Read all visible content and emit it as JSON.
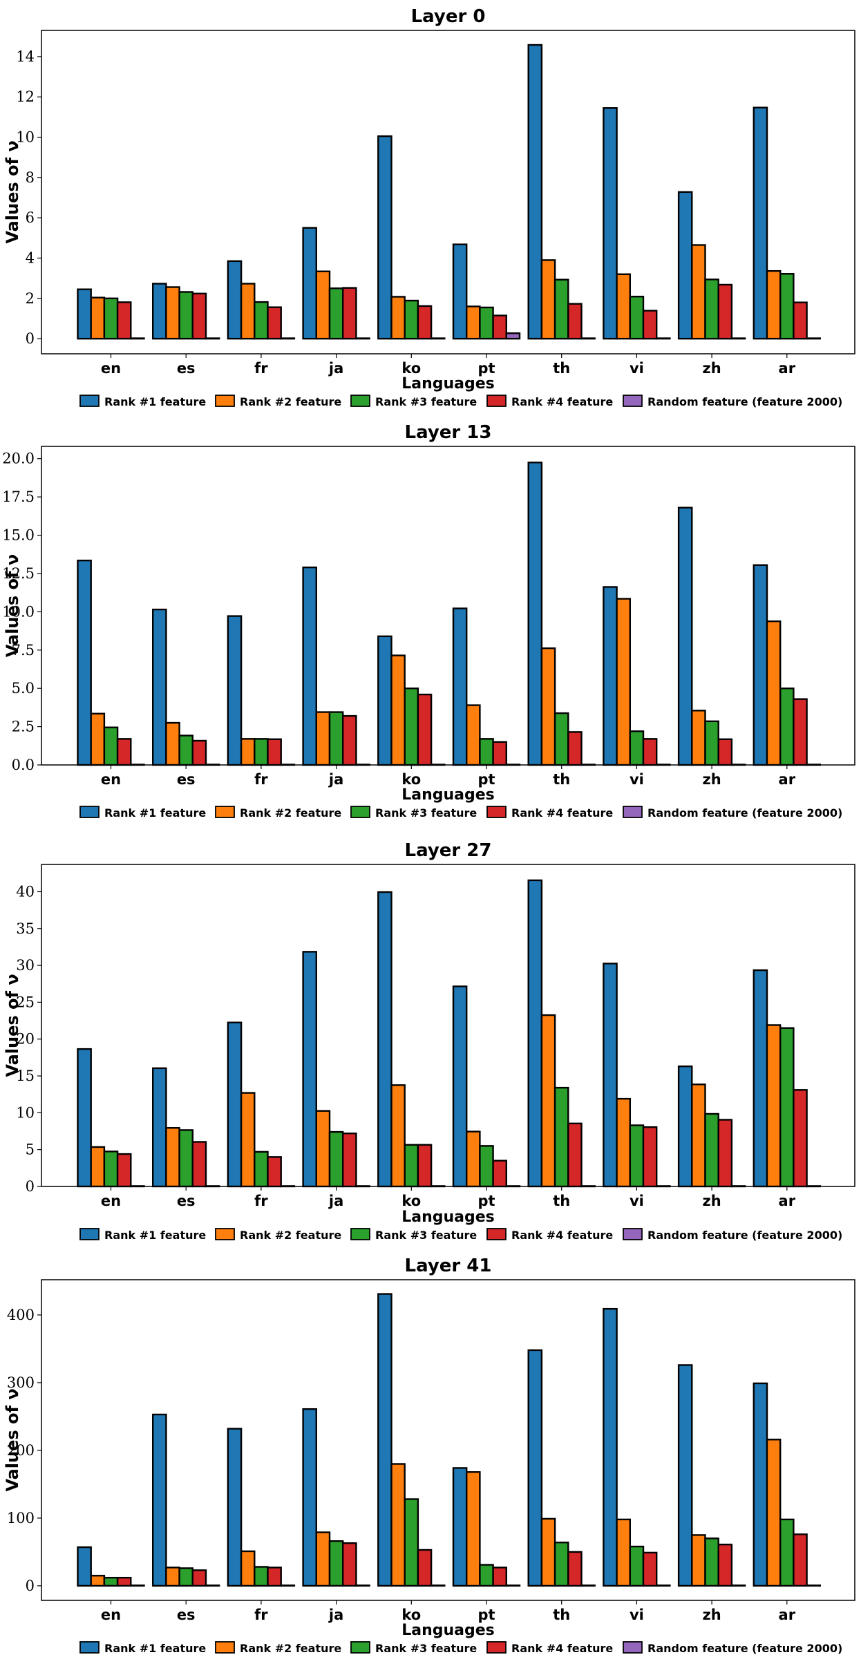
{
  "chart_data": [
    {
      "type": "bar",
      "title": "Layer 0",
      "xlabel": "Languages",
      "ylabel": "Values of ν",
      "categories": [
        "en",
        "es",
        "fr",
        "ja",
        "ko",
        "pt",
        "th",
        "vi",
        "zh",
        "ar"
      ],
      "ylim": [
        -0.75,
        15.3
      ],
      "yticks": [
        0,
        2,
        4,
        6,
        8,
        10,
        12,
        14
      ],
      "ytick_labels": [
        "0",
        "2",
        "4",
        "6",
        "8",
        "10",
        "12",
        "14"
      ],
      "legend_position": "bottom-center",
      "series": [
        {
          "name": "Rank #1 feature",
          "color": "#1f77b4",
          "values": [
            2.45,
            2.73,
            3.85,
            5.5,
            10.05,
            4.68,
            14.58,
            11.45,
            7.28,
            11.47
          ]
        },
        {
          "name": "Rank #2 feature",
          "color": "#ff7f0e",
          "values": [
            2.04,
            2.56,
            2.73,
            3.34,
            2.08,
            1.6,
            3.9,
            3.2,
            4.65,
            3.36
          ]
        },
        {
          "name": "Rank #3 feature",
          "color": "#2ca02c",
          "values": [
            2.0,
            2.32,
            1.82,
            2.5,
            1.89,
            1.55,
            2.93,
            2.09,
            2.94,
            3.22
          ]
        },
        {
          "name": "Rank #4 feature",
          "color": "#d62728",
          "values": [
            1.81,
            2.24,
            1.56,
            2.52,
            1.62,
            1.15,
            1.73,
            1.39,
            2.68,
            1.8
          ]
        },
        {
          "name": "Random feature (feature 2000)",
          "color": "#9467bd",
          "values": [
            0.02,
            0.02,
            0.02,
            0.02,
            0.02,
            0.27,
            0.02,
            0.02,
            0.02,
            0.02
          ]
        }
      ]
    },
    {
      "type": "bar",
      "title": "Layer 13",
      "xlabel": "Languages",
      "ylabel": "Values of ν",
      "categories": [
        "en",
        "es",
        "fr",
        "ja",
        "ko",
        "pt",
        "th",
        "vi",
        "zh",
        "ar"
      ],
      "ylim": [
        0,
        20.8
      ],
      "yticks": [
        0,
        2.5,
        5,
        7.5,
        10,
        12.5,
        15,
        17.5,
        20
      ],
      "ytick_labels": [
        "0.0",
        "2.5",
        "5.0",
        "7.5",
        "10.0",
        "12.5",
        "15.0",
        "17.5",
        "20.0"
      ],
      "legend_position": "bottom-center",
      "series": [
        {
          "name": "Rank #1 feature",
          "color": "#1f77b4",
          "values": [
            13.35,
            10.15,
            9.72,
            12.9,
            8.4,
            10.22,
            19.75,
            11.62,
            16.8,
            13.05
          ]
        },
        {
          "name": "Rank #2 feature",
          "color": "#ff7f0e",
          "values": [
            3.35,
            2.75,
            1.7,
            3.45,
            7.15,
            3.9,
            7.62,
            10.85,
            3.55,
            9.38
          ]
        },
        {
          "name": "Rank #3 feature",
          "color": "#2ca02c",
          "values": [
            2.45,
            1.92,
            1.7,
            3.45,
            5.0,
            1.7,
            3.38,
            2.2,
            2.85,
            5.0
          ]
        },
        {
          "name": "Rank #4 feature",
          "color": "#d62728",
          "values": [
            1.7,
            1.58,
            1.68,
            3.2,
            4.6,
            1.5,
            2.15,
            1.7,
            1.68,
            4.3
          ]
        },
        {
          "name": "Random feature (feature 2000)",
          "color": "#9467bd",
          "values": [
            0.02,
            0.02,
            0.02,
            0.02,
            0.02,
            0.02,
            0.02,
            0.02,
            0.02,
            0.02
          ]
        }
      ]
    },
    {
      "type": "bar",
      "title": "Layer 27",
      "xlabel": "Languages",
      "ylabel": "Values of ν",
      "categories": [
        "en",
        "es",
        "fr",
        "ja",
        "ko",
        "pt",
        "th",
        "vi",
        "zh",
        "ar"
      ],
      "ylim": [
        0,
        43.7
      ],
      "yticks": [
        0,
        5,
        10,
        15,
        20,
        25,
        30,
        35,
        40
      ],
      "ytick_labels": [
        "0",
        "5",
        "10",
        "15",
        "20",
        "25",
        "30",
        "35",
        "40"
      ],
      "legend_position": "bottom-center",
      "series": [
        {
          "name": "Rank #1 feature",
          "color": "#1f77b4",
          "values": [
            18.65,
            16.05,
            22.25,
            31.85,
            39.95,
            27.15,
            41.55,
            30.25,
            16.3,
            29.35
          ]
        },
        {
          "name": "Rank #2 feature",
          "color": "#ff7f0e",
          "values": [
            5.35,
            7.95,
            12.7,
            10.25,
            13.75,
            7.45,
            23.25,
            11.9,
            13.85,
            21.9
          ]
        },
        {
          "name": "Rank #3 feature",
          "color": "#2ca02c",
          "values": [
            4.75,
            7.65,
            4.7,
            7.4,
            5.65,
            5.5,
            13.4,
            8.3,
            9.85,
            21.5
          ]
        },
        {
          "name": "Rank #4 feature",
          "color": "#d62728",
          "values": [
            4.4,
            6.05,
            4.0,
            7.2,
            5.65,
            3.5,
            8.55,
            8.05,
            9.05,
            13.1
          ]
        },
        {
          "name": "Random feature (feature 2000)",
          "color": "#9467bd",
          "values": [
            0.05,
            0.05,
            0.05,
            0.05,
            0.05,
            0.05,
            0.05,
            0.05,
            0.05,
            0.05
          ]
        }
      ]
    },
    {
      "type": "bar",
      "title": "Layer 41",
      "xlabel": "Languages",
      "ylabel": "Values of ν",
      "categories": [
        "en",
        "es",
        "fr",
        "ja",
        "ko",
        "pt",
        "th",
        "vi",
        "zh",
        "ar"
      ],
      "ylim": [
        -21.5,
        452
      ],
      "yticks": [
        0,
        100,
        200,
        300,
        400
      ],
      "ytick_labels": [
        "0",
        "100",
        "200",
        "300",
        "400"
      ],
      "legend_position": "bottom-center",
      "series": [
        {
          "name": "Rank #1 feature",
          "color": "#1f77b4",
          "values": [
            57,
            253,
            232,
            261,
            431,
            174,
            348,
            409,
            326,
            299
          ]
        },
        {
          "name": "Rank #2 feature",
          "color": "#ff7f0e",
          "values": [
            15,
            27,
            51,
            79,
            180,
            168,
            99,
            98,
            75,
            216
          ]
        },
        {
          "name": "Rank #3 feature",
          "color": "#2ca02c",
          "values": [
            12,
            26,
            28,
            66,
            128,
            31,
            64,
            58,
            70,
            98
          ]
        },
        {
          "name": "Rank #4 feature",
          "color": "#d62728",
          "values": [
            12,
            23,
            27,
            63,
            53,
            27,
            50,
            49,
            61,
            76
          ]
        },
        {
          "name": "Random feature (feature 2000)",
          "color": "#9467bd",
          "values": [
            0.5,
            0.5,
            0.5,
            0.5,
            0.5,
            0.5,
            0.5,
            0.5,
            0.5,
            0.5
          ]
        }
      ]
    }
  ]
}
